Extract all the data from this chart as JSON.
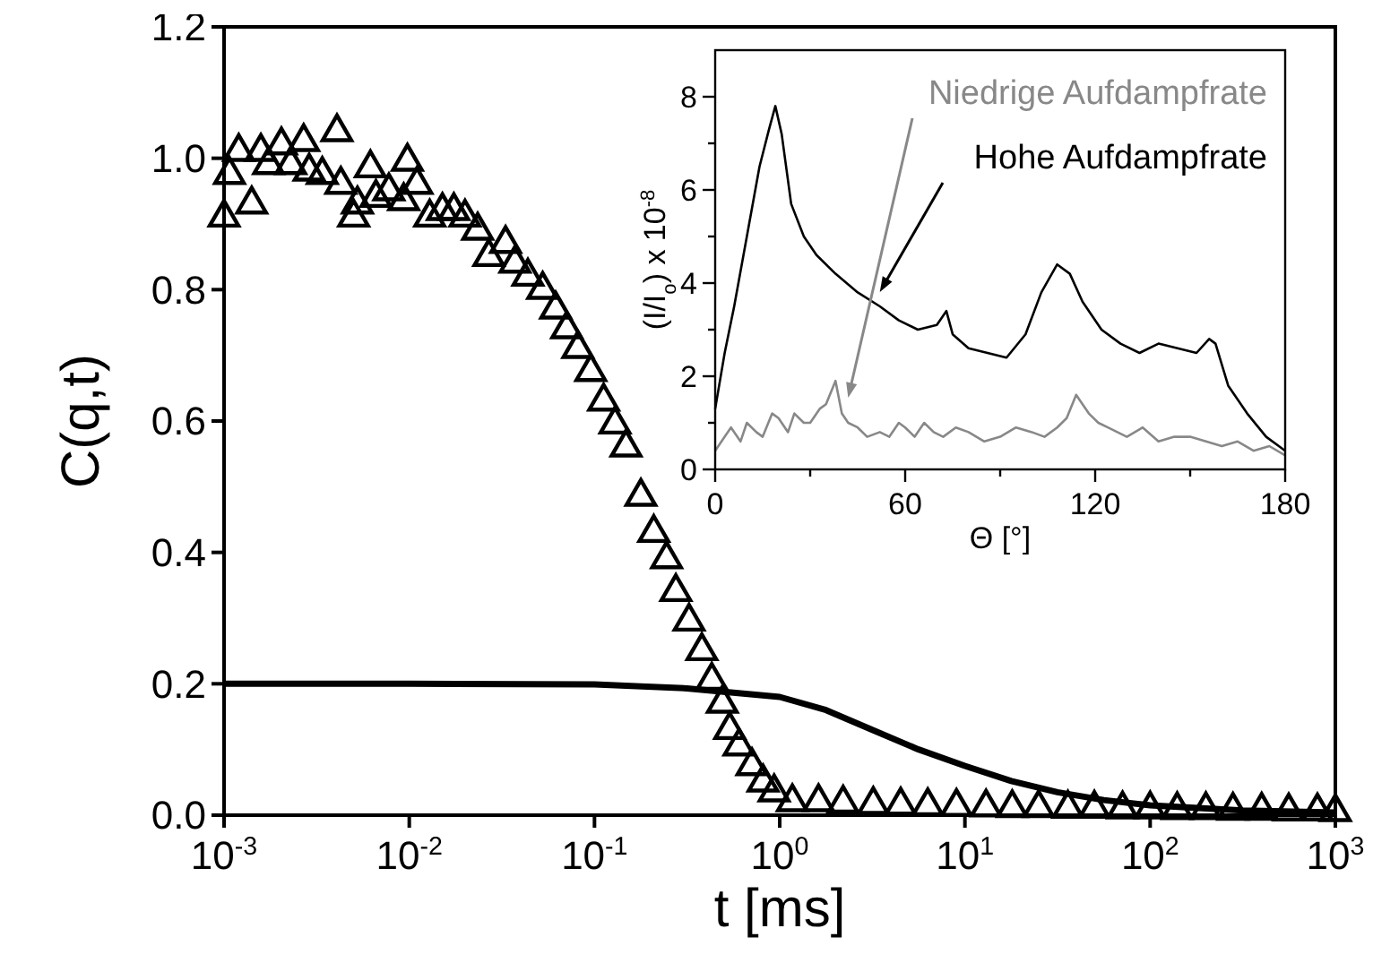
{
  "chart_data": [
    {
      "type": "scatter",
      "xlabel": "t [ms]",
      "ylabel": "C(q,t)",
      "log": "x",
      "xlim": [
        0.001,
        1000
      ],
      "ylim": [
        0,
        1.2
      ],
      "xticks": [
        {
          "value": 0.001,
          "label": "10$^{-3}$"
        },
        {
          "value": 0.01,
          "label": "10$^{-2}$"
        },
        {
          "value": 0.1,
          "label": "10$^{-1}$"
        },
        {
          "value": 1,
          "label": "10$^{0}$"
        },
        {
          "value": 10,
          "label": "10$^{1}$"
        },
        {
          "value": 100,
          "label": "10$^{2}$"
        },
        {
          "value": 1000,
          "label": "10$^{3}$"
        }
      ],
      "yticks": [
        {
          "value": 0,
          "label": "0.0"
        },
        {
          "value": 0.2,
          "label": "0.2"
        },
        {
          "value": 0.4,
          "label": "0.4"
        },
        {
          "value": 0.6,
          "label": "0.6"
        },
        {
          "value": 0.8,
          "label": "0.8"
        },
        {
          "value": 1,
          "label": "1.0"
        },
        {
          "value": 1.2,
          "label": "1.2"
        }
      ],
      "series": [
        {
          "color": "#000000",
          "marker": "triangle",
          "x": [
            0.001,
            0.00107,
            0.0012,
            0.00141,
            0.00158,
            0.00174,
            0.00204,
            0.00229,
            0.00269,
            0.00288,
            0.00339,
            0.00407,
            0.00427,
            0.00501,
            0.00525,
            0.00617,
            0.00661,
            0.00776,
            0.00933,
            0.00977,
            0.011,
            0.0129,
            0.0151,
            0.0174,
            0.02,
            0.0234,
            0.0269,
            0.0331,
            0.0372,
            0.0437,
            0.0525,
            0.0617,
            0.0708,
            0.0813,
            0.0955,
            0.112,
            0.129,
            0.148,
            0.178,
            0.209,
            0.245,
            0.275,
            0.324,
            0.38,
            0.43,
            0.49,
            0.537,
            0.603,
            0.708,
            0.813,
            0.933,
            1.17,
            1.62,
            2.2,
            3.2,
            4.5,
            6.3,
            9,
            13,
            18,
            25,
            36,
            50,
            71,
            100,
            140,
            200,
            280,
            400,
            560,
            800,
            1000
          ],
          "values": [
            0.91,
            0.975,
            1.01,
            0.93,
            1.01,
            0.99,
            1.02,
            0.99,
            1.025,
            0.98,
            0.975,
            1.04,
            0.96,
            0.91,
            0.93,
            0.985,
            0.94,
            0.95,
            0.935,
            0.995,
            0.96,
            0.91,
            0.92,
            0.92,
            0.91,
            0.89,
            0.85,
            0.87,
            0.84,
            0.82,
            0.8,
            0.77,
            0.74,
            0.71,
            0.675,
            0.63,
            0.595,
            0.56,
            0.485,
            0.43,
            0.39,
            0.34,
            0.295,
            0.25,
            0.205,
            0.17,
            0.13,
            0.105,
            0.075,
            0.05,
            0.035,
            0.02,
            0.02,
            0.018,
            0.016,
            0.015,
            0.014,
            0.013,
            0.012,
            0.011,
            0.011,
            0.01,
            0.01,
            0.009,
            0.009,
            0.008,
            0.008,
            0.007,
            0.007,
            0.006,
            0.006,
            0.005
          ]
        },
        {
          "type": "line",
          "color": "#000000",
          "x": [
            0.001,
            0.01,
            0.1,
            0.316,
            1,
            1.78,
            3.16,
            5.62,
            10,
            17.8,
            31.6,
            56.2,
            100,
            316,
            1000
          ],
          "values": [
            0.2,
            0.2,
            0.199,
            0.193,
            0.18,
            0.16,
            0.13,
            0.1,
            0.075,
            0.052,
            0.035,
            0.023,
            0.015,
            0.007,
            0.004
          ]
        }
      ]
    },
    {
      "type": "line",
      "xlabel": "Θ [°]",
      "ylabel": "(I/I$_{o}$) x 10$^{-8}$",
      "xlim": [
        0,
        180
      ],
      "ylim": [
        0,
        9
      ],
      "xticks": [
        0,
        {
          "value": 30,
          "label": null
        },
        60,
        {
          "value": 90,
          "label": null
        },
        120,
        {
          "value": 150,
          "label": null
        },
        180
      ],
      "yticks": [
        0,
        {
          "value": 1,
          "label": null
        },
        2,
        {
          "value": 3,
          "label": null
        },
        4,
        {
          "value": 5,
          "label": null
        },
        6,
        {
          "value": 7,
          "label": null
        },
        8
      ],
      "series": [
        {
          "name": "Niedrige Aufdampfrate",
          "color": "#888888",
          "x": [
            0,
            3,
            5,
            8,
            10,
            13,
            15,
            18,
            20,
            23,
            25,
            28,
            30,
            33,
            35,
            38,
            40,
            42,
            45,
            48,
            52,
            55,
            58,
            60,
            63,
            66,
            69,
            72,
            76,
            80,
            85,
            90,
            95,
            100,
            104,
            108,
            111,
            114,
            116,
            118,
            121,
            124,
            127,
            130,
            135,
            140,
            145,
            150,
            155,
            160,
            165,
            170,
            175,
            180
          ],
          "values": [
            0.4,
            0.7,
            0.9,
            0.6,
            1.0,
            0.8,
            0.7,
            1.2,
            1.1,
            0.8,
            1.2,
            1.0,
            1.0,
            1.3,
            1.4,
            1.9,
            1.2,
            1.0,
            0.9,
            0.7,
            0.8,
            0.7,
            1.0,
            0.9,
            0.7,
            1.0,
            0.8,
            0.7,
            0.9,
            0.8,
            0.6,
            0.7,
            0.9,
            0.8,
            0.7,
            0.9,
            1.1,
            1.6,
            1.4,
            1.2,
            1.0,
            0.9,
            0.8,
            0.7,
            0.9,
            0.6,
            0.7,
            0.7,
            0.6,
            0.5,
            0.6,
            0.4,
            0.5,
            0.3
          ]
        },
        {
          "name": "Hohe Aufdampfrate",
          "color": "#000000",
          "x": [
            0,
            3,
            6,
            10,
            14,
            17,
            19,
            21,
            24,
            28,
            32,
            38,
            45,
            52,
            58,
            64,
            70,
            73,
            75,
            80,
            86,
            92,
            98,
            103,
            108,
            112,
            116,
            122,
            128,
            134,
            140,
            146,
            152,
            156,
            158,
            162,
            168,
            174,
            178,
            180
          ],
          "values": [
            1.3,
            2.5,
            3.5,
            5.0,
            6.5,
            7.3,
            7.8,
            7.2,
            5.7,
            5.0,
            4.6,
            4.2,
            3.8,
            3.5,
            3.2,
            3.0,
            3.1,
            3.4,
            2.9,
            2.6,
            2.5,
            2.4,
            2.9,
            3.8,
            4.4,
            4.2,
            3.6,
            3.0,
            2.7,
            2.5,
            2.7,
            2.6,
            2.5,
            2.8,
            2.7,
            1.8,
            1.2,
            0.7,
            0.5,
            0.4
          ]
        }
      ]
    }
  ]
}
